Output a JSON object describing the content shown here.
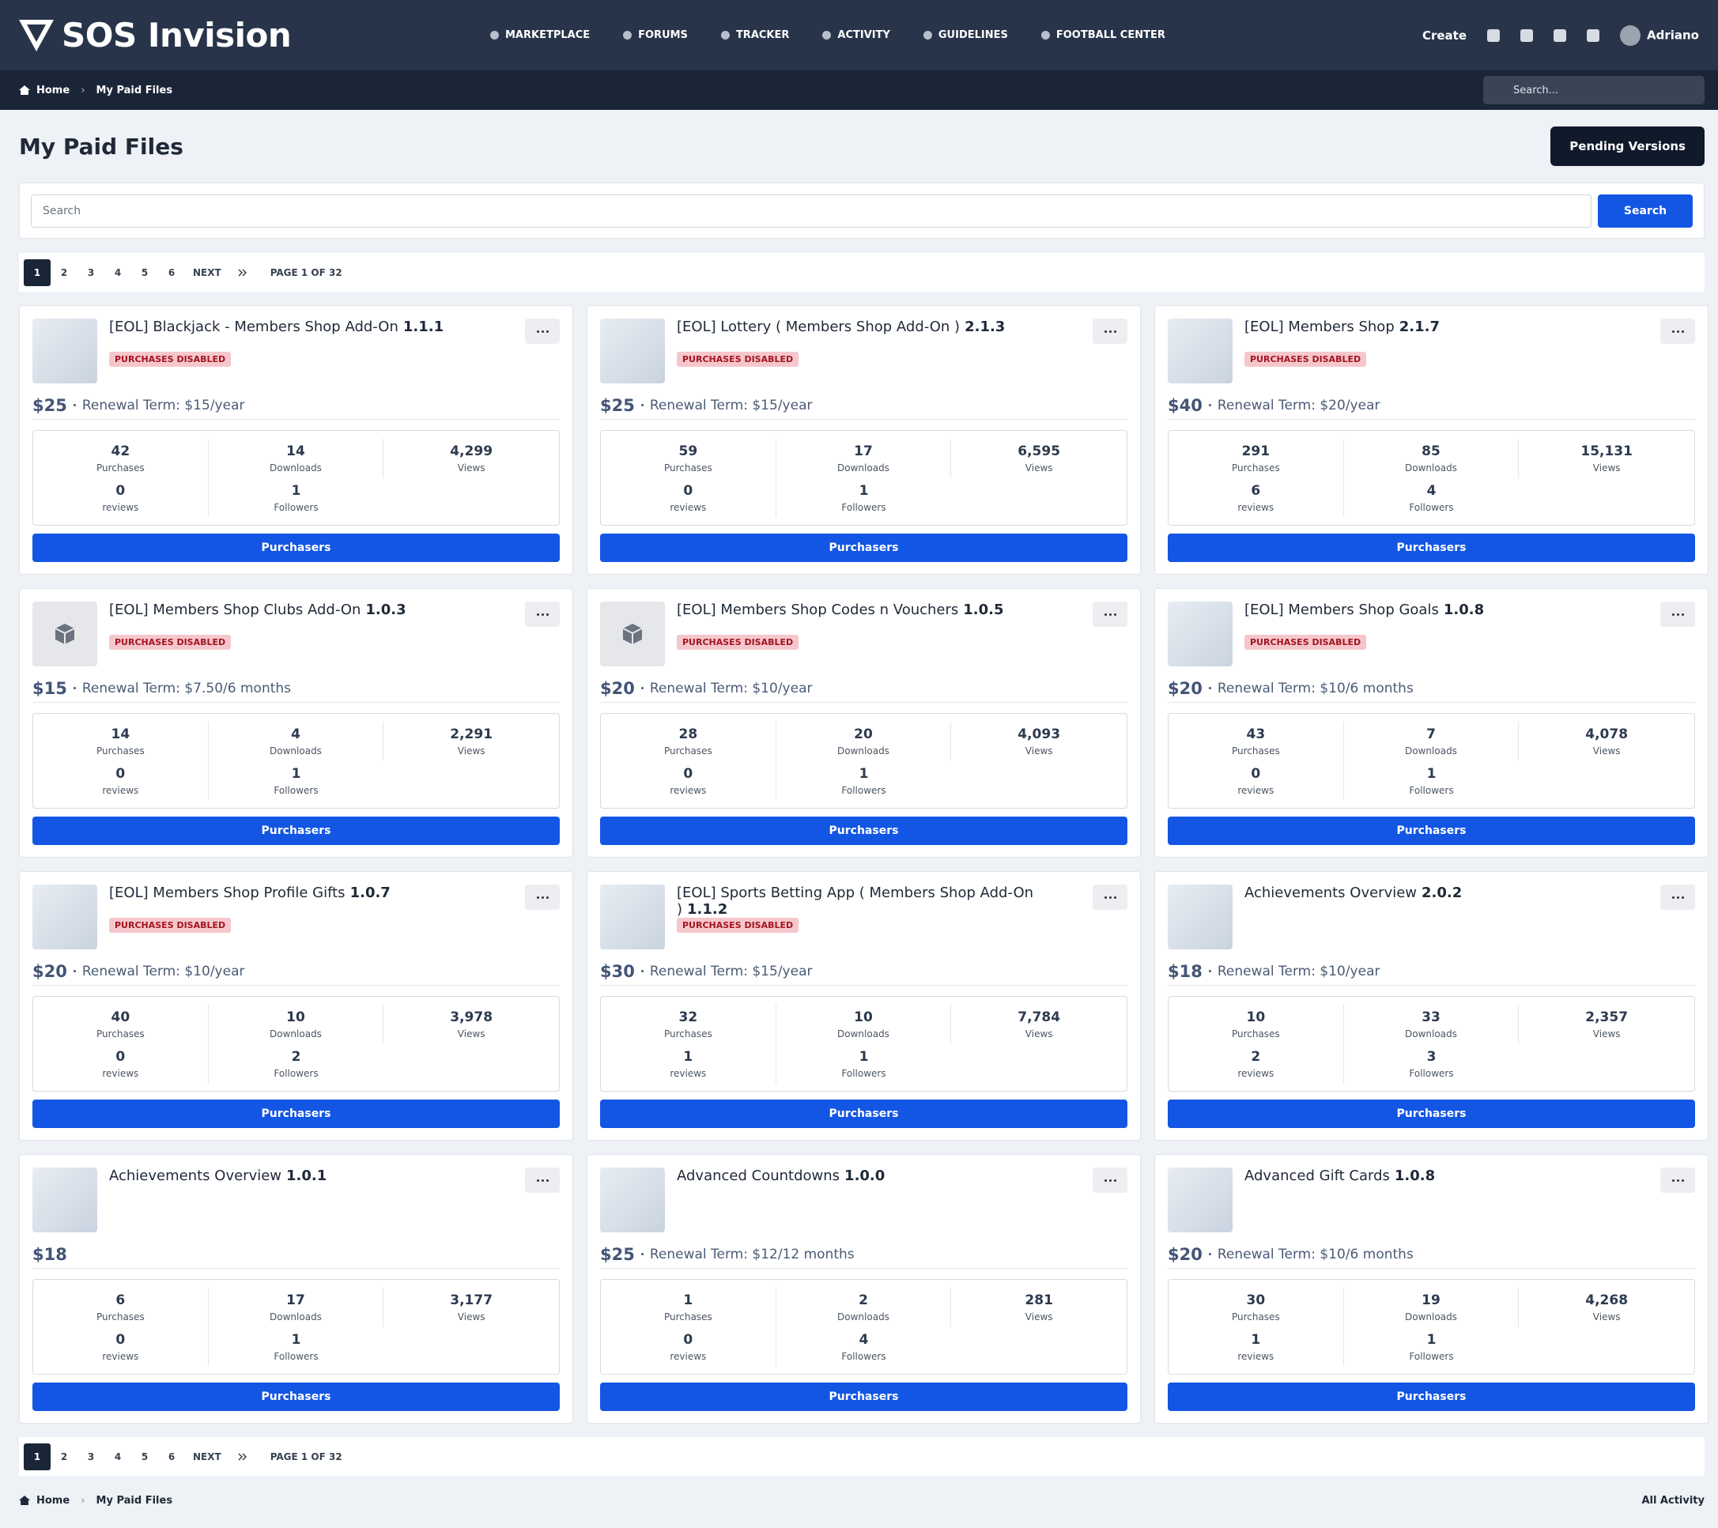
{
  "header": {
    "brand": "SOS Invision",
    "nav": [
      "MARKETPLACE",
      "FORUMS",
      "TRACKER",
      "ACTIVITY",
      "GUIDELINES",
      "FOOTBALL CENTER"
    ],
    "create": "Create",
    "user": "Adriano",
    "search_placeholder": "Search..."
  },
  "breadcrumb": [
    "Home",
    "My Paid Files"
  ],
  "title": "My Paid Files",
  "pending": "Pending Versions",
  "search": {
    "placeholder": "Search",
    "button": "Search"
  },
  "pagination": {
    "pages": [
      "1",
      "2",
      "3",
      "4",
      "5",
      "6"
    ],
    "next": "NEXT",
    "page_of": "PAGE 1 OF 32"
  },
  "stat_labels": {
    "purchases": "Purchases",
    "downloads": "Downloads",
    "views": "Views",
    "reviews": "reviews",
    "followers": "Followers"
  },
  "button": "Purchasers",
  "files": [
    {
      "title": "[EOL] Blackjack - Members Shop Add-On",
      "version": "1.1.1",
      "badge": "PURCHASES DISABLED",
      "price": "$25",
      "renewal": "Renewal Term: $15/year",
      "purchases": "42",
      "downloads": "14",
      "views": "4,299",
      "reviews": "0",
      "followers": "1"
    },
    {
      "title": "[EOL] Lottery ( Members Shop Add-On )",
      "version": "2.1.3",
      "badge": "PURCHASES DISABLED",
      "price": "$25",
      "renewal": "Renewal Term: $15/year",
      "purchases": "59",
      "downloads": "17",
      "views": "6,595",
      "reviews": "0",
      "followers": "1"
    },
    {
      "title": "[EOL] Members Shop",
      "version": "2.1.7",
      "badge": "PURCHASES DISABLED",
      "price": "$40",
      "renewal": "Renewal Term: $20/year",
      "purchases": "291",
      "downloads": "85",
      "views": "15,131",
      "reviews": "6",
      "followers": "4"
    },
    {
      "title": "[EOL] Members Shop Clubs Add-On",
      "version": "1.0.3",
      "badge": "PURCHASES DISABLED",
      "price": "$15",
      "renewal": "Renewal Term: $7.50/6 months",
      "purchases": "14",
      "downloads": "4",
      "views": "2,291",
      "reviews": "0",
      "followers": "1"
    },
    {
      "title": "[EOL] Members Shop Codes n Vouchers",
      "version": "1.0.5",
      "badge": "PURCHASES DISABLED",
      "price": "$20",
      "renewal": "Renewal Term: $10/year",
      "purchases": "28",
      "downloads": "20",
      "views": "4,093",
      "reviews": "0",
      "followers": "1"
    },
    {
      "title": "[EOL] Members Shop Goals",
      "version": "1.0.8",
      "badge": "PURCHASES DISABLED",
      "price": "$20",
      "renewal": "Renewal Term: $10/6 months",
      "purchases": "43",
      "downloads": "7",
      "views": "4,078",
      "reviews": "0",
      "followers": "1"
    },
    {
      "title": "[EOL] Members Shop Profile Gifts",
      "version": "1.0.7",
      "badge": "PURCHASES DISABLED",
      "price": "$20",
      "renewal": "Renewal Term: $10/year",
      "purchases": "40",
      "downloads": "10",
      "views": "3,978",
      "reviews": "0",
      "followers": "2"
    },
    {
      "title": "[EOL] Sports Betting App ( Members Shop Add-On )",
      "version": "1.1.2",
      "badge": "PURCHASES DISABLED",
      "price": "$30",
      "renewal": "Renewal Term: $15/year",
      "purchases": "32",
      "downloads": "10",
      "views": "7,784",
      "reviews": "1",
      "followers": "1"
    },
    {
      "title": "Achievements Overview",
      "version": "2.0.2",
      "price": "$18",
      "renewal": "Renewal Term: $10/year",
      "purchases": "10",
      "downloads": "33",
      "views": "2,357",
      "reviews": "2",
      "followers": "3"
    },
    {
      "title": "Achievements Overview",
      "version": "1.0.1",
      "price": "$18",
      "purchases": "6",
      "downloads": "17",
      "views": "3,177",
      "reviews": "0",
      "followers": "1"
    },
    {
      "title": "Advanced Countdowns",
      "version": "1.0.0",
      "price": "$25",
      "renewal": "Renewal Term: $12/12 months",
      "purchases": "1",
      "downloads": "2",
      "views": "281",
      "reviews": "0",
      "followers": "4"
    },
    {
      "title": "Advanced Gift Cards",
      "version": "1.0.8",
      "price": "$20",
      "renewal": "Renewal Term: $10/6 months",
      "purchases": "30",
      "downloads": "19",
      "views": "4,268",
      "reviews": "1",
      "followers": "1"
    }
  ],
  "footer": {
    "activity": "All Activity"
  }
}
